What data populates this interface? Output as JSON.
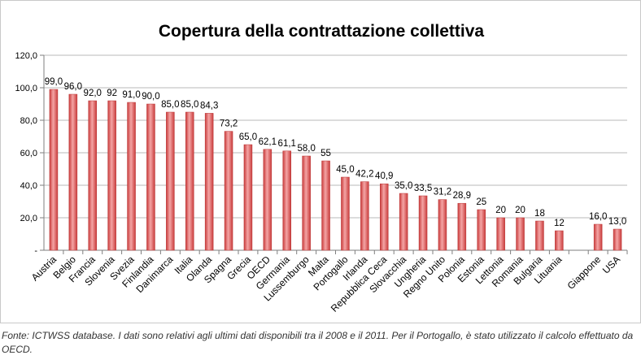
{
  "chart_data": {
    "type": "bar",
    "title": "Copertura della contrattazione collettiva",
    "xlabel": "",
    "ylabel": "",
    "ylim": [
      0,
      120
    ],
    "yticks": [
      0,
      20,
      40,
      60,
      80,
      100,
      120
    ],
    "ytick_labels": [
      "-",
      "20,0",
      "40,0",
      "60,0",
      "80,0",
      "100,0",
      "120,0"
    ],
    "grid": true,
    "legend": "none",
    "bar_color": "#d94c4c",
    "categories": [
      "Austria",
      "Belgio",
      "Francia",
      "Slovenia",
      "Svezia",
      "Finlandia",
      "Danimarca",
      "Italia",
      "Olanda",
      "Spagna",
      "Grecia",
      "OECD",
      "Germania",
      "Lussemburgo",
      "Malta",
      "Portogallo",
      "Irlanda",
      "Repubblica Ceca",
      "Slovacchia",
      "Ungheria",
      "Regno Unito",
      "Polonia",
      "Estonia",
      "Lettonia",
      "Romania",
      "Bulgaria",
      "Lituania",
      "",
      "Giappone",
      "USA"
    ],
    "values": [
      99.0,
      96.0,
      92.0,
      92,
      91.0,
      90.0,
      85.0,
      85.0,
      84.3,
      73.2,
      65.0,
      62.1,
      61.1,
      58.0,
      55,
      45.0,
      42.2,
      40.9,
      35.0,
      33.5,
      31.2,
      28.9,
      25,
      20,
      20,
      18,
      12,
      null,
      16.0,
      13.0
    ],
    "data_labels": [
      "99,0",
      "96,0",
      "92,0",
      "92",
      "91,0",
      "90,0",
      "85,0",
      "85,0",
      "84,3",
      "73,2",
      "65,0",
      "62,1",
      "61,1",
      "58,0",
      "55",
      "45,0",
      "42,2",
      "40,9",
      "35,0",
      "33,5",
      "31,2",
      "28,9",
      "25",
      "20",
      "20",
      "18",
      "12",
      "",
      "16,0",
      "13,0"
    ]
  },
  "caption": "Fonte: ICTWSS database. I dati sono relativi agli ultimi dati disponibili tra il 2008 e il 2011. Per il Portogallo, è stato utilizzato il calcolo effettuato da OECD."
}
